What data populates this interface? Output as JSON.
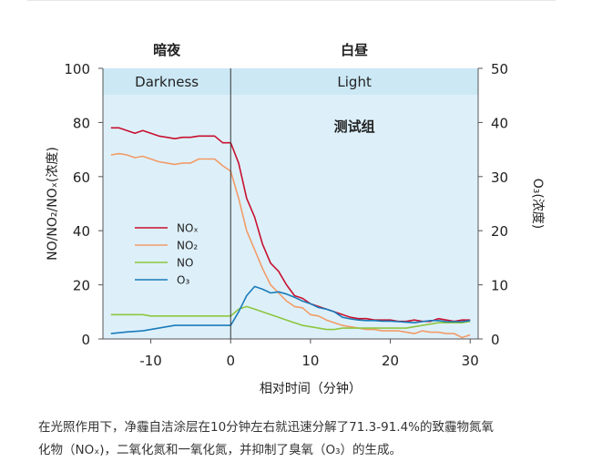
{
  "chart_data": {
    "type": "line",
    "phases": {
      "dark_label_cn": "暗夜",
      "light_label_cn": "白昼",
      "dark_label_en": "Darkness",
      "light_label_en": "Light",
      "group_label": "测试组",
      "boundary_x": 0
    },
    "xlabel": "相对时间（分钟）",
    "ylabel_left": "NO/NO₂/NOₓ(浓度)",
    "ylabel_right": "O₃(浓度)",
    "xlim": [
      -16,
      31
    ],
    "ylim_left": [
      0,
      100
    ],
    "ylim_right": [
      0,
      50
    ],
    "x_ticks": [
      -10,
      0,
      10,
      20,
      30
    ],
    "y_ticks_left": [
      0,
      20,
      40,
      60,
      80,
      100
    ],
    "y_ticks_right": [
      0,
      10,
      20,
      30,
      40,
      50
    ],
    "legend_position": "middle-left",
    "colors": {
      "band": "#cce8f5",
      "plot_bg": "#ddf0fa",
      "nox": "#c8102e",
      "no2": "#f29b67",
      "no": "#8cc63f",
      "o3": "#1a7bb9"
    },
    "series": [
      {
        "name": "NOₓ",
        "axis": "left",
        "points": [
          [
            -15,
            78
          ],
          [
            -14,
            78
          ],
          [
            -13,
            77
          ],
          [
            -12,
            76
          ],
          [
            -11,
            77
          ],
          [
            -10,
            76
          ],
          [
            -9,
            75
          ],
          [
            -8,
            74.5
          ],
          [
            -7,
            74
          ],
          [
            -6,
            74.5
          ],
          [
            -5,
            74.5
          ],
          [
            -4,
            75
          ],
          [
            -3,
            75
          ],
          [
            -2,
            75
          ],
          [
            -1,
            72.5
          ],
          [
            0,
            72.5
          ],
          [
            1,
            65
          ],
          [
            2,
            52
          ],
          [
            3,
            45
          ],
          [
            4,
            35
          ],
          [
            5,
            28
          ],
          [
            6,
            25
          ],
          [
            7,
            20
          ],
          [
            8,
            16
          ],
          [
            9,
            15
          ],
          [
            10,
            13
          ],
          [
            11,
            12
          ],
          [
            12,
            11
          ],
          [
            13,
            10
          ],
          [
            14,
            9
          ],
          [
            15,
            8
          ],
          [
            16,
            7.5
          ],
          [
            17,
            7.5
          ],
          [
            18,
            7
          ],
          [
            19,
            7
          ],
          [
            20,
            7
          ],
          [
            21,
            6.5
          ],
          [
            22,
            6.5
          ],
          [
            23,
            7
          ],
          [
            24,
            6.5
          ],
          [
            25,
            6.5
          ],
          [
            26,
            7.5
          ],
          [
            27,
            7
          ],
          [
            28,
            6.5
          ],
          [
            29,
            7
          ],
          [
            30,
            7
          ]
        ]
      },
      {
        "name": "NO₂",
        "axis": "left",
        "points": [
          [
            -15,
            68
          ],
          [
            -14,
            68.5
          ],
          [
            -13,
            68
          ],
          [
            -12,
            67
          ],
          [
            -11,
            67.5
          ],
          [
            -10,
            66.5
          ],
          [
            -9,
            65.5
          ],
          [
            -8,
            65
          ],
          [
            -7,
            64.5
          ],
          [
            -6,
            65
          ],
          [
            -5,
            65
          ],
          [
            -4,
            66.5
          ],
          [
            -3,
            66.5
          ],
          [
            -2,
            66.5
          ],
          [
            -1,
            64
          ],
          [
            0,
            62
          ],
          [
            1,
            52
          ],
          [
            2,
            40
          ],
          [
            3,
            33
          ],
          [
            4,
            26
          ],
          [
            5,
            20
          ],
          [
            6,
            17
          ],
          [
            7,
            14
          ],
          [
            8,
            12
          ],
          [
            9,
            11.5
          ],
          [
            10,
            9
          ],
          [
            11,
            8.5
          ],
          [
            12,
            7
          ],
          [
            13,
            6
          ],
          [
            14,
            5
          ],
          [
            15,
            4.5
          ],
          [
            16,
            4
          ],
          [
            17,
            3.5
          ],
          [
            18,
            3.5
          ],
          [
            19,
            3
          ],
          [
            20,
            3
          ],
          [
            21,
            3
          ],
          [
            22,
            2.5
          ],
          [
            23,
            2
          ],
          [
            24,
            3
          ],
          [
            25,
            2.5
          ],
          [
            26,
            2.5
          ],
          [
            27,
            2
          ],
          [
            28,
            2
          ],
          [
            29,
            0.5
          ],
          [
            30,
            1.5
          ]
        ]
      },
      {
        "name": "NO",
        "axis": "left",
        "points": [
          [
            -15,
            9
          ],
          [
            -14,
            9
          ],
          [
            -13,
            9
          ],
          [
            -12,
            9
          ],
          [
            -11,
            9
          ],
          [
            -10,
            8.5
          ],
          [
            -9,
            8.5
          ],
          [
            -8,
            8.5
          ],
          [
            -7,
            8.5
          ],
          [
            -6,
            8.5
          ],
          [
            -5,
            8.5
          ],
          [
            -4,
            8.5
          ],
          [
            -3,
            8.5
          ],
          [
            -2,
            8.5
          ],
          [
            -1,
            8.5
          ],
          [
            0,
            8.5
          ],
          [
            1,
            11
          ],
          [
            2,
            12
          ],
          [
            3,
            11
          ],
          [
            4,
            10
          ],
          [
            5,
            9
          ],
          [
            6,
            8
          ],
          [
            7,
            7
          ],
          [
            8,
            6
          ],
          [
            9,
            5
          ],
          [
            10,
            4.5
          ],
          [
            11,
            4
          ],
          [
            12,
            3.5
          ],
          [
            13,
            3.5
          ],
          [
            14,
            4
          ],
          [
            15,
            4
          ],
          [
            16,
            4
          ],
          [
            17,
            4
          ],
          [
            18,
            4
          ],
          [
            19,
            4
          ],
          [
            20,
            4
          ],
          [
            21,
            4
          ],
          [
            22,
            4
          ],
          [
            23,
            4.5
          ],
          [
            24,
            5
          ],
          [
            25,
            5.5
          ],
          [
            26,
            6
          ],
          [
            27,
            6
          ],
          [
            28,
            6
          ],
          [
            29,
            6
          ],
          [
            30,
            6.5
          ]
        ]
      },
      {
        "name": "O₃",
        "axis": "right",
        "points": [
          [
            -15,
            1
          ],
          [
            -13,
            1.3
          ],
          [
            -11,
            1.5
          ],
          [
            -9,
            2
          ],
          [
            -7,
            2.5
          ],
          [
            -5,
            2.5
          ],
          [
            -3,
            2.5
          ],
          [
            -1,
            2.5
          ],
          [
            0,
            2.5
          ],
          [
            1,
            5
          ],
          [
            2,
            8
          ],
          [
            3,
            9.7
          ],
          [
            4,
            9.2
          ],
          [
            5,
            8.5
          ],
          [
            6,
            8.7
          ],
          [
            7,
            8.3
          ],
          [
            8,
            7.7
          ],
          [
            9,
            7
          ],
          [
            10,
            6.5
          ],
          [
            11,
            5.8
          ],
          [
            12,
            5.5
          ],
          [
            13,
            5
          ],
          [
            14,
            4
          ],
          [
            15,
            3.7
          ],
          [
            16,
            3.5
          ],
          [
            17,
            3.4
          ],
          [
            18,
            3.4
          ],
          [
            19,
            3.3
          ],
          [
            20,
            3.3
          ],
          [
            21,
            3.2
          ],
          [
            22,
            3.1
          ],
          [
            23,
            3
          ],
          [
            24,
            3.2
          ],
          [
            25,
            3.4
          ],
          [
            26,
            3.4
          ],
          [
            27,
            3.2
          ],
          [
            28,
            3.2
          ],
          [
            29,
            3.2
          ],
          [
            30,
            3.4
          ]
        ]
      }
    ]
  },
  "caption": {
    "line1": "在光照作用下，净霾自洁涂层在10分钟左右就迅速分解了71.3-91.4%的致霾物氮氧",
    "line2": "化物（NOₓ)，二氧化氮和一氧化氮，并抑制了臭氧（O₃）的生成。"
  }
}
